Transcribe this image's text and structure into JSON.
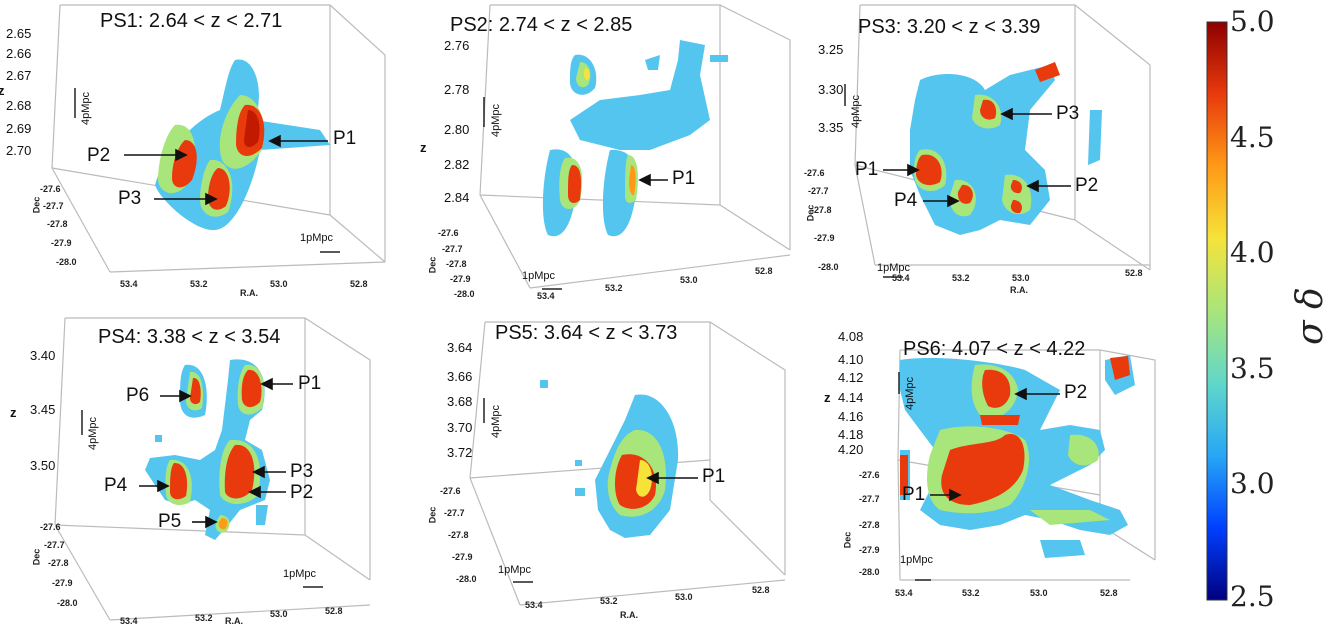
{
  "panels": [
    {
      "id": "ps1",
      "title": "PS1: 2.64 < z < 2.71",
      "z_ticks": [
        "2.65",
        "2.66",
        "2.67",
        "2.68",
        "2.69",
        "2.70"
      ],
      "dec_ticks": [
        "-27.6",
        "-27.7",
        "-27.8",
        "-27.9",
        "-28.0"
      ],
      "ra_ticks": [
        "53.4",
        "53.2",
        "53.0",
        "52.8"
      ],
      "labels": [
        "P1",
        "P2",
        "P3"
      ]
    },
    {
      "id": "ps2",
      "title": "PS2: 2.74 < z < 2.85",
      "z_ticks": [
        "2.76",
        "2.78",
        "2.80",
        "2.82",
        "2.84"
      ],
      "dec_ticks": [
        "-27.6",
        "-27.7",
        "-27.8",
        "-27.9",
        "-28.0"
      ],
      "ra_ticks": [
        "53.4",
        "53.2",
        "53.0",
        "52.8"
      ],
      "labels": [
        "P1"
      ]
    },
    {
      "id": "ps3",
      "title": "PS3: 3.20 < z < 3.39",
      "z_ticks": [
        "3.25",
        "3.30",
        "3.35"
      ],
      "dec_ticks": [
        "-27.6",
        "-27.7",
        "-27.8",
        "-27.9",
        "-28.0"
      ],
      "ra_ticks": [
        "53.4",
        "53.2",
        "53.0",
        "52.8"
      ],
      "labels": [
        "P1",
        "P2",
        "P3",
        "P4"
      ]
    },
    {
      "id": "ps4",
      "title": "PS4: 3.38 < z < 3.54",
      "z_ticks": [
        "3.40",
        "3.45",
        "3.50"
      ],
      "dec_ticks": [
        "-27.6",
        "-27.7",
        "-27.8",
        "-27.9",
        "-28.0"
      ],
      "ra_ticks": [
        "53.4",
        "53.2",
        "53.0",
        "52.8"
      ],
      "labels": [
        "P1",
        "P2",
        "P3",
        "P4",
        "P5",
        "P6"
      ]
    },
    {
      "id": "ps5",
      "title": "PS5: 3.64 < z < 3.73",
      "z_ticks": [
        "3.64",
        "3.66",
        "3.68",
        "3.70",
        "3.72"
      ],
      "dec_ticks": [
        "-27.6",
        "-27.7",
        "-27.8",
        "-27.9",
        "-28.0"
      ],
      "ra_ticks": [
        "53.4",
        "53.2",
        "53.0",
        "52.8"
      ],
      "labels": [
        "P1"
      ]
    },
    {
      "id": "ps6",
      "title": "PS6: 4.07 < z < 4.22",
      "z_ticks": [
        "4.08",
        "4.10",
        "4.12",
        "4.14",
        "4.16",
        "4.18",
        "4.20"
      ],
      "dec_ticks": [
        "-27.6",
        "-27.7",
        "-27.8",
        "-27.9",
        "-28.0"
      ],
      "ra_ticks": [
        "53.4",
        "53.2",
        "53.0",
        "52.8"
      ],
      "labels": [
        "P1",
        "P2"
      ]
    }
  ],
  "axis_labels": {
    "z": "z",
    "dec": "Dec",
    "ra": "R.A."
  },
  "scales": {
    "vertical": "4pMpc",
    "horizontal": "1pMpc"
  },
  "colorbar": {
    "label": "σ δ",
    "ticks": [
      "5.0",
      "4.5",
      "4.0",
      "3.5",
      "3.0",
      "2.5"
    ],
    "range": [
      2.5,
      5.0
    ],
    "colors": [
      "#00007f",
      "#0040ff",
      "#27a7f5",
      "#61d7c9",
      "#a8e57b",
      "#f5e33a",
      "#ff9a16",
      "#e83a0d",
      "#8e0000"
    ]
  }
}
